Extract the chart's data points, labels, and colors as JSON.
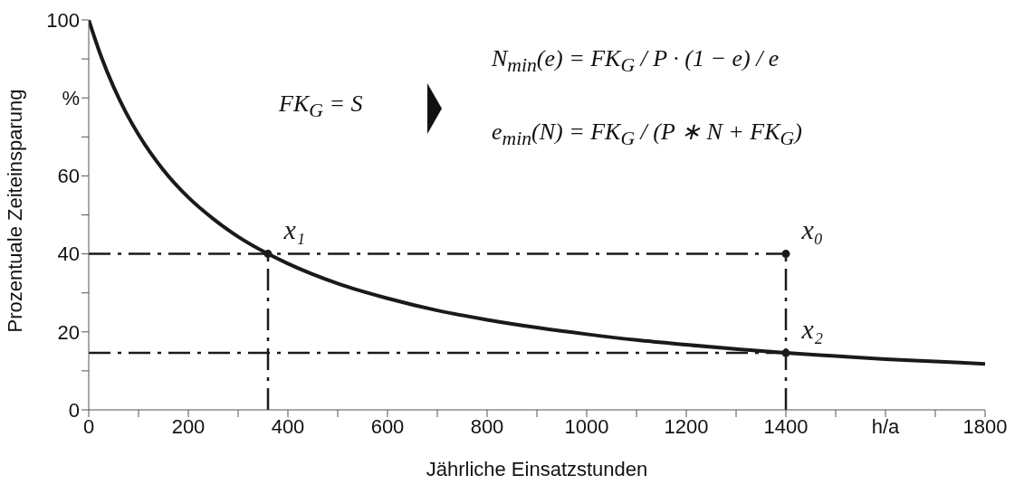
{
  "chart_data": {
    "type": "line",
    "xlabel": "Jährliche Einsatzstunden",
    "ylabel": "Prozentuale Zeiteinsparung",
    "xlim": [
      0,
      1800
    ],
    "ylim": [
      0,
      100
    ],
    "xticks": [
      0,
      {
        "value": 100,
        "label": null
      },
      200,
      {
        "value": 300,
        "label": null
      },
      400,
      {
        "value": 500,
        "label": null
      },
      600,
      {
        "value": 700,
        "label": null
      },
      800,
      {
        "value": 900,
        "label": null
      },
      1000,
      {
        "value": 1100,
        "label": null
      },
      1200,
      {
        "value": 1300,
        "label": null
      },
      1400,
      {
        "value": 1500,
        "label": null
      },
      {
        "value": 1600,
        "label": "h/a"
      },
      {
        "value": 1700,
        "label": null
      },
      1800
    ],
    "yticks": [
      0,
      {
        "value": 10,
        "label": null
      },
      20,
      {
        "value": 30,
        "label": null
      },
      40,
      {
        "value": 50,
        "label": null
      },
      60,
      {
        "value": 70,
        "label": null
      },
      {
        "value": 80,
        "label": "%"
      },
      {
        "value": 90,
        "label": null
      },
      100
    ],
    "series": [
      {
        "color": "#1a1a1a",
        "marker": "none",
        "line_style": "solid",
        "x": [
          0,
          25,
          50,
          75,
          100,
          150,
          200,
          250,
          300,
          360,
          400,
          500,
          600,
          700,
          800,
          900,
          1000,
          1100,
          1200,
          1300,
          1400,
          1500,
          1600,
          1700,
          1800
        ],
        "values": [
          100,
          90.6,
          82.8,
          76.2,
          70.6,
          61.5,
          54.5,
          49.0,
          44.4,
          40,
          37.5,
          32.4,
          28.6,
          25.5,
          23.1,
          21.1,
          19.4,
          17.9,
          16.7,
          15.6,
          14.6,
          13.8,
          13.0,
          12.4,
          11.8
        ]
      },
      {
        "type": "scatter",
        "name": "x₁",
        "color": "#1a1a1a",
        "marker": "circle",
        "x": [
          360
        ],
        "values": [
          40
        ]
      },
      {
        "type": "scatter",
        "name": "x₀",
        "color": "#1a1a1a",
        "marker": "circle",
        "x": [
          1400
        ],
        "values": [
          40
        ]
      },
      {
        "type": "scatter",
        "name": "x₂",
        "color": "#1a1a1a",
        "marker": "circle",
        "x": [
          1400
        ],
        "values": [
          14.6
        ]
      }
    ],
    "ref_lines": [
      {
        "axis": "y",
        "value": 40,
        "color": "#1a1a1a",
        "line_style": "dashed"
      },
      {
        "axis": "y",
        "value": 14.6,
        "color": "#1a1a1a",
        "line_style": "dashed"
      },
      {
        "axis": "x",
        "value": 360,
        "color": "#1a1a1a",
        "line_style": "dashed"
      },
      {
        "axis": "x",
        "value": 1400,
        "color": "#1a1a1a",
        "line_style": "dashed"
      }
    ],
    "annotations": [
      "FK$_{G}$ = S",
      "N$_{min}$(e) = FK$_{G}$ / P · (1 − e) / e",
      "e$_{min}$(N) = FK$_{G}$ / (P ∗ N + FK$_{G}$)"
    ]
  }
}
